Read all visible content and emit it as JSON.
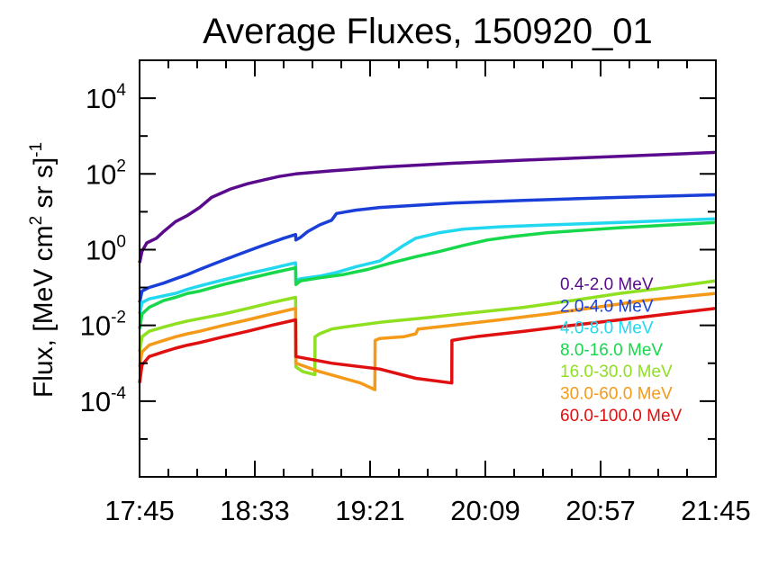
{
  "chart_data": {
    "type": "line",
    "title": "Average Fluxes, 150920_01",
    "ylabel": {
      "main": "Flux, [MeV cm",
      "sup1": "2",
      "mid": " sr s]",
      "sup2": "-1"
    },
    "y_scale": "log",
    "ylim_exponents": [
      -6,
      5
    ],
    "y_tick_exponents": [
      -4,
      -2,
      0,
      2,
      4
    ],
    "y_tick_base": "10",
    "x_range_minutes": [
      0,
      240
    ],
    "x_ticks": [
      {
        "label": "17:45",
        "t": 0
      },
      {
        "label": "18:33",
        "t": 48
      },
      {
        "label": "19:21",
        "t": 96
      },
      {
        "label": "20:09",
        "t": 144
      },
      {
        "label": "20:57",
        "t": 192
      },
      {
        "label": "21:45",
        "t": 240
      }
    ],
    "legend_position": "right",
    "series": [
      {
        "name": "0.4-2.0 MeV",
        "color": "#5a0a8c",
        "points": [
          [
            0,
            0.45
          ],
          [
            1,
            0.9
          ],
          [
            3,
            1.5
          ],
          [
            7,
            2.0
          ],
          [
            10,
            3.0
          ],
          [
            15,
            5.5
          ],
          [
            20,
            8
          ],
          [
            25,
            13
          ],
          [
            30,
            24
          ],
          [
            38,
            40
          ],
          [
            45,
            55
          ],
          [
            52,
            70
          ],
          [
            58,
            85
          ],
          [
            65,
            100
          ],
          [
            80,
            120
          ],
          [
            100,
            150
          ],
          [
            130,
            190
          ],
          [
            160,
            230
          ],
          [
            200,
            290
          ],
          [
            240,
            370
          ]
        ]
      },
      {
        "name": "2.0-4.0 MeV",
        "color": "#1a3fd8",
        "points": [
          [
            0,
            0.04
          ],
          [
            1,
            0.08
          ],
          [
            4,
            0.1
          ],
          [
            10,
            0.13
          ],
          [
            15,
            0.17
          ],
          [
            20,
            0.22
          ],
          [
            25,
            0.3
          ],
          [
            30,
            0.4
          ],
          [
            40,
            0.7
          ],
          [
            50,
            1.2
          ],
          [
            60,
            2.0
          ],
          [
            65,
            2.5
          ],
          [
            65.1,
            1.8
          ],
          [
            67,
            2.1
          ],
          [
            70,
            3.0
          ],
          [
            75,
            4.5
          ],
          [
            80,
            6
          ],
          [
            82,
            9
          ],
          [
            90,
            11
          ],
          [
            100,
            13
          ],
          [
            130,
            17
          ],
          [
            160,
            20
          ],
          [
            200,
            24
          ],
          [
            240,
            28
          ]
        ]
      },
      {
        "name": "4.0-8.0 MeV",
        "color": "#22d8f0",
        "points": [
          [
            0,
            0.02
          ],
          [
            1,
            0.04
          ],
          [
            4,
            0.05
          ],
          [
            10,
            0.06
          ],
          [
            15,
            0.07
          ],
          [
            20,
            0.09
          ],
          [
            25,
            0.11
          ],
          [
            35,
            0.16
          ],
          [
            45,
            0.23
          ],
          [
            55,
            0.32
          ],
          [
            65,
            0.45
          ],
          [
            65.1,
            0.15
          ],
          [
            67,
            0.17
          ],
          [
            75,
            0.2
          ],
          [
            82,
            0.25
          ],
          [
            90,
            0.35
          ],
          [
            100,
            0.5
          ],
          [
            105,
            0.8
          ],
          [
            110,
            1.3
          ],
          [
            115,
            2.0
          ],
          [
            125,
            2.8
          ],
          [
            135,
            3.5
          ],
          [
            150,
            4.0
          ],
          [
            170,
            4.5
          ],
          [
            200,
            5.2
          ],
          [
            240,
            6.5
          ]
        ]
      },
      {
        "name": "8.0-16.0 MeV",
        "color": "#16d84a",
        "points": [
          [
            0,
            0.008
          ],
          [
            1,
            0.02
          ],
          [
            4,
            0.03
          ],
          [
            10,
            0.045
          ],
          [
            15,
            0.055
          ],
          [
            20,
            0.07
          ],
          [
            25,
            0.08
          ],
          [
            35,
            0.12
          ],
          [
            45,
            0.17
          ],
          [
            55,
            0.24
          ],
          [
            65,
            0.33
          ],
          [
            65.1,
            0.12
          ],
          [
            67,
            0.15
          ],
          [
            75,
            0.18
          ],
          [
            85,
            0.22
          ],
          [
            95,
            0.3
          ],
          [
            105,
            0.45
          ],
          [
            115,
            0.65
          ],
          [
            125,
            0.9
          ],
          [
            135,
            1.3
          ],
          [
            145,
            1.8
          ],
          [
            155,
            2.2
          ],
          [
            170,
            2.8
          ],
          [
            200,
            3.8
          ],
          [
            240,
            5.2
          ]
        ]
      },
      {
        "name": "16.0-30.0 MeV",
        "color": "#8ee020",
        "points": [
          [
            0,
            0.002
          ],
          [
            1,
            0.005
          ],
          [
            4,
            0.007
          ],
          [
            10,
            0.009
          ],
          [
            15,
            0.011
          ],
          [
            20,
            0.013
          ],
          [
            25,
            0.015
          ],
          [
            35,
            0.02
          ],
          [
            45,
            0.028
          ],
          [
            55,
            0.04
          ],
          [
            65,
            0.055
          ],
          [
            65.1,
            0.0008
          ],
          [
            68,
            0.0006
          ],
          [
            73,
            0.0005
          ],
          [
            73.1,
            0.005
          ],
          [
            75,
            0.006
          ],
          [
            80,
            0.008
          ],
          [
            85,
            0.009
          ],
          [
            100,
            0.012
          ],
          [
            120,
            0.016
          ],
          [
            140,
            0.022
          ],
          [
            160,
            0.03
          ],
          [
            180,
            0.045
          ],
          [
            200,
            0.07
          ],
          [
            220,
            0.1
          ],
          [
            240,
            0.15
          ]
        ]
      },
      {
        "name": "30.0-60.0 MeV",
        "color": "#f59a18",
        "points": [
          [
            0,
            0.0008
          ],
          [
            1,
            0.002
          ],
          [
            4,
            0.003
          ],
          [
            10,
            0.004
          ],
          [
            15,
            0.005
          ],
          [
            20,
            0.006
          ],
          [
            25,
            0.007
          ],
          [
            35,
            0.01
          ],
          [
            45,
            0.014
          ],
          [
            55,
            0.02
          ],
          [
            65,
            0.028
          ],
          [
            65.1,
            0.001
          ],
          [
            75,
            0.0006
          ],
          [
            85,
            0.0004
          ],
          [
            92,
            0.0003
          ],
          [
            98,
            0.0002
          ],
          [
            98.1,
            0.004
          ],
          [
            100,
            0.0045
          ],
          [
            110,
            0.005
          ],
          [
            115,
            0.006
          ],
          [
            116,
            0.008
          ],
          [
            130,
            0.01
          ],
          [
            150,
            0.014
          ],
          [
            170,
            0.02
          ],
          [
            190,
            0.03
          ],
          [
            210,
            0.045
          ],
          [
            240,
            0.07
          ]
        ]
      },
      {
        "name": "60.0-100.0 MeV",
        "color": "#e01010",
        "points": [
          [
            0,
            0.0003
          ],
          [
            1,
            0.0009
          ],
          [
            4,
            0.0015
          ],
          [
            10,
            0.002
          ],
          [
            15,
            0.0025
          ],
          [
            20,
            0.003
          ],
          [
            25,
            0.0035
          ],
          [
            35,
            0.005
          ],
          [
            45,
            0.007
          ],
          [
            55,
            0.01
          ],
          [
            65,
            0.014
          ],
          [
            65.1,
            0.0015
          ],
          [
            80,
            0.001
          ],
          [
            100,
            0.0007
          ],
          [
            115,
            0.0004
          ],
          [
            130,
            0.0003
          ],
          [
            130.1,
            0.004
          ],
          [
            135,
            0.0045
          ],
          [
            140,
            0.005
          ],
          [
            160,
            0.007
          ],
          [
            180,
            0.01
          ],
          [
            200,
            0.014
          ],
          [
            220,
            0.02
          ],
          [
            240,
            0.028
          ]
        ]
      }
    ]
  }
}
